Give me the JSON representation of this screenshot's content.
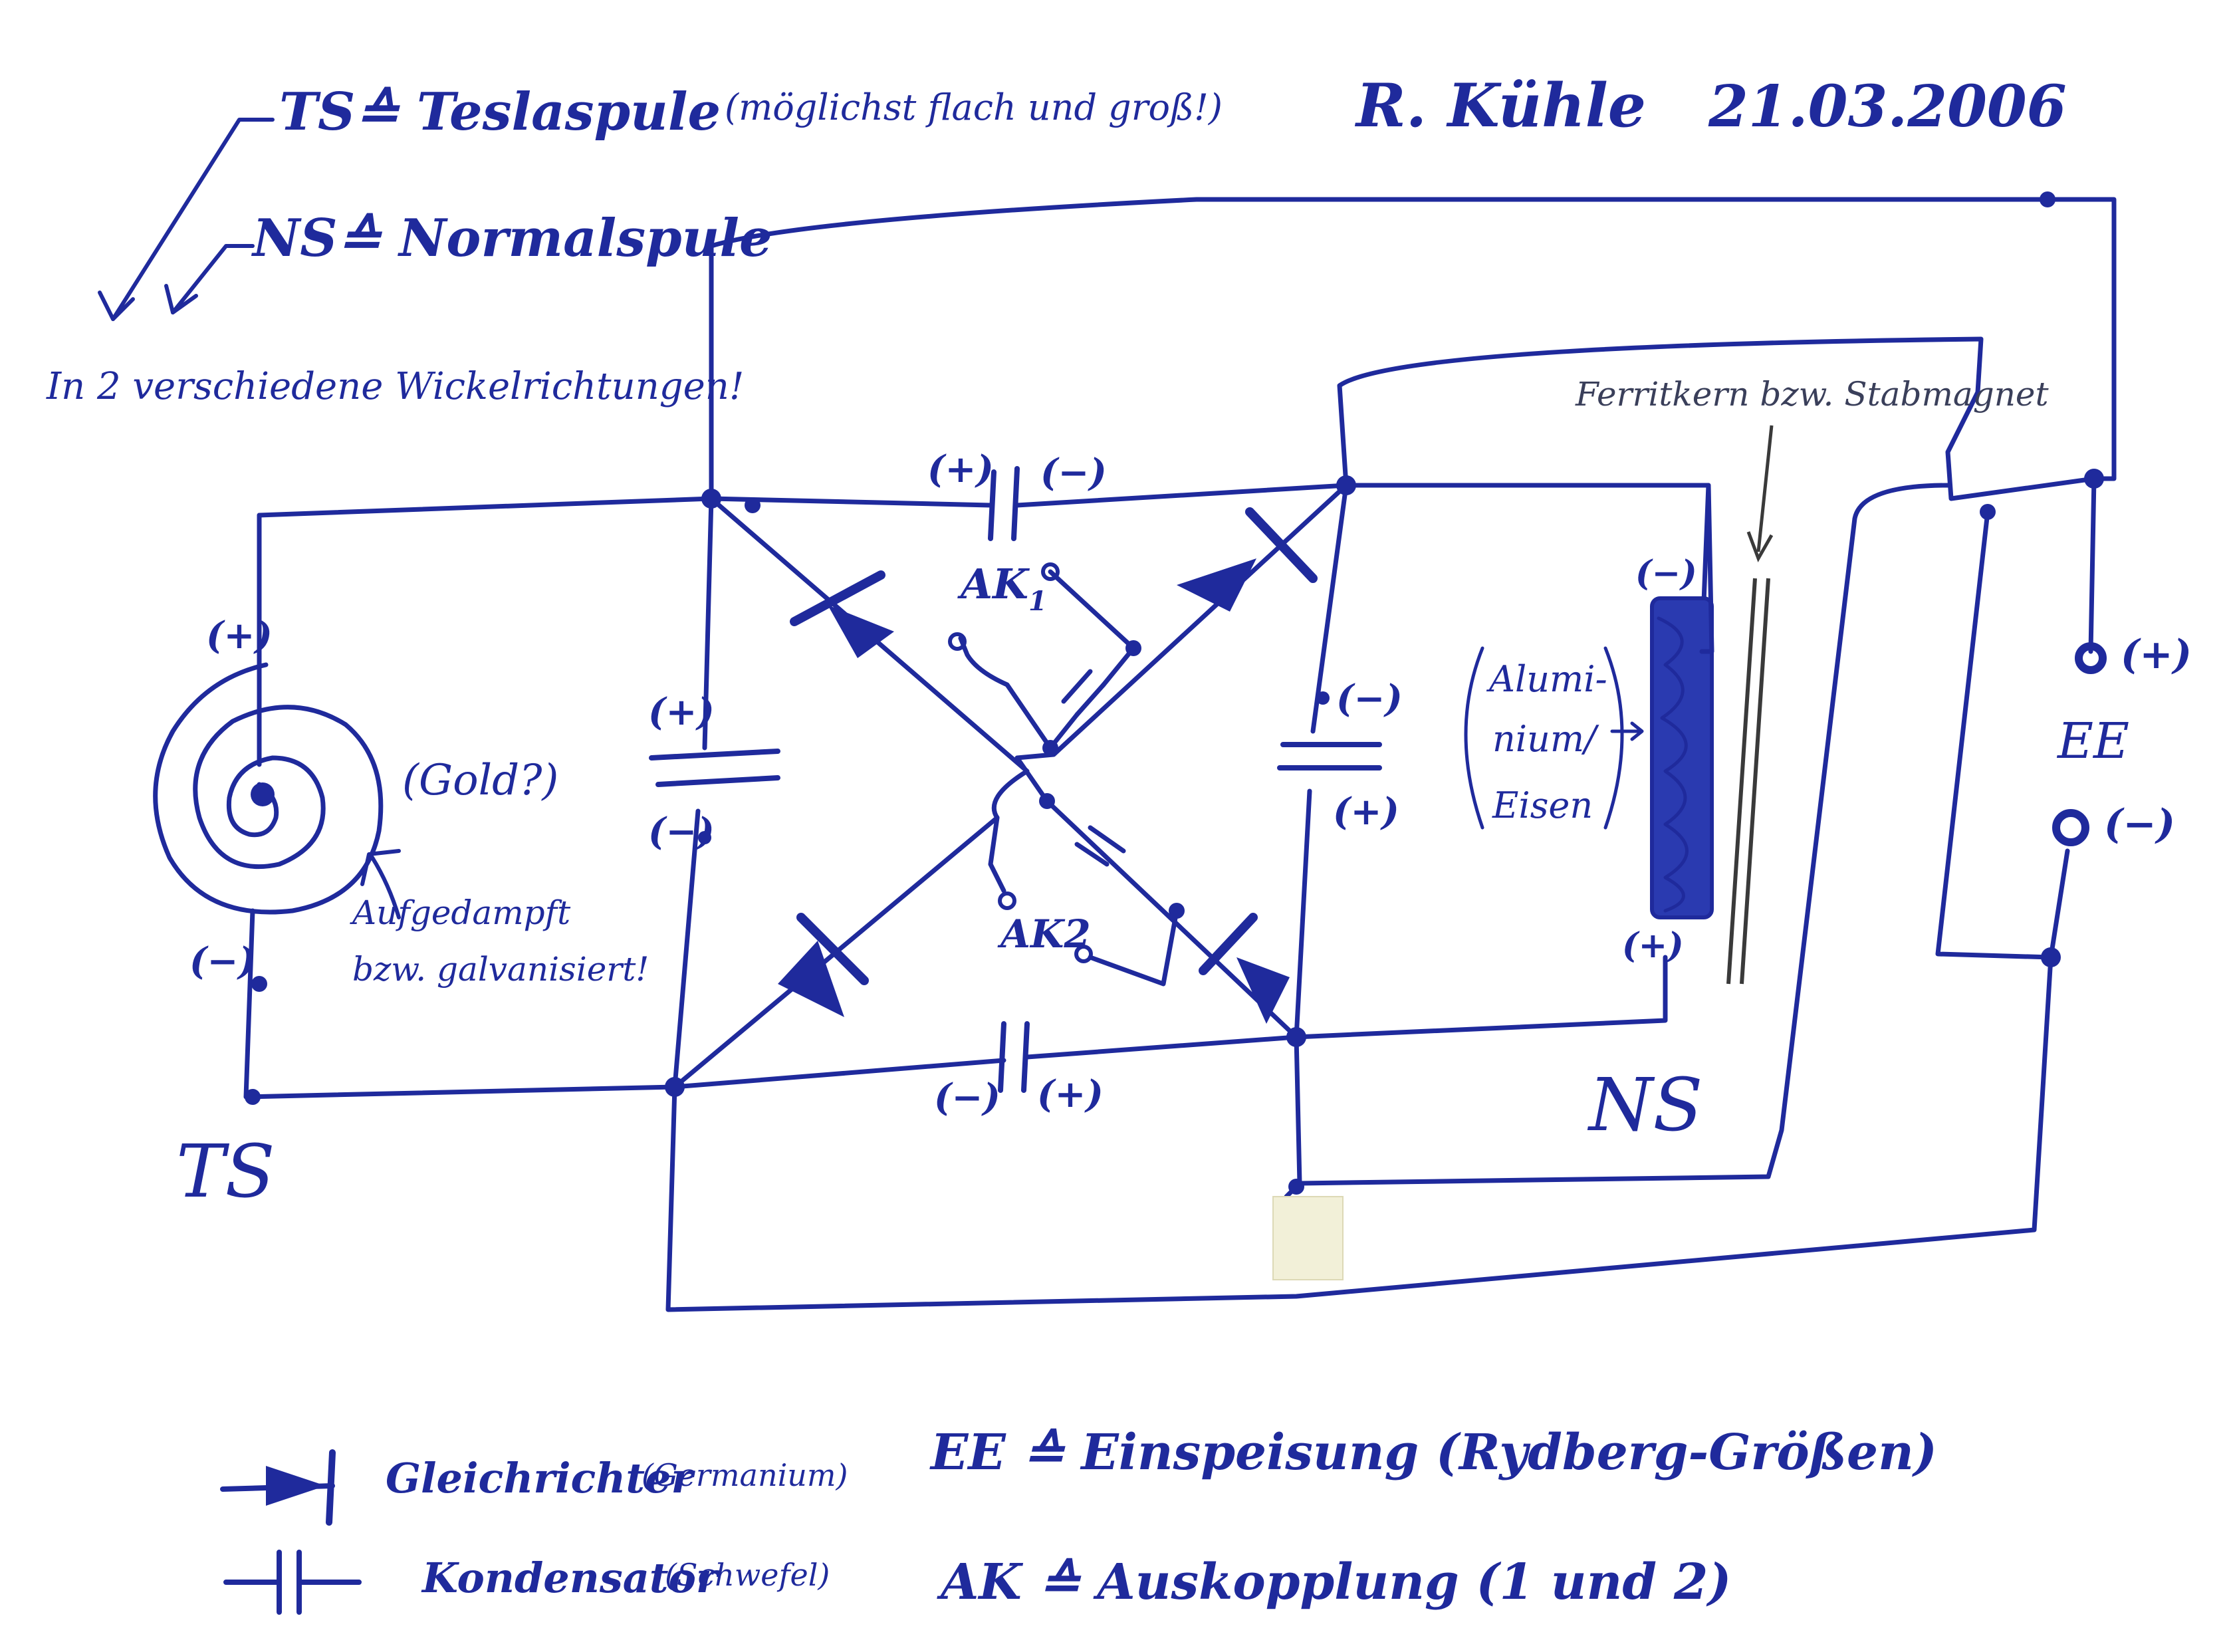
{
  "header": {
    "legend_ts": "TS≙ Teslaspule",
    "legend_ts_note": "(möglichst flach und groß!)",
    "legend_ns": "NS≙ Normalspule",
    "winding_note": "In 2 verschiedene Wickelrichtungen!",
    "author": "R. Kühle",
    "date": "21.03.2006"
  },
  "labels": {
    "plus": "(+)",
    "minus": "(−)",
    "gold": "(Gold?)",
    "gold_note_1": "Aufgedampft",
    "gold_note_2": "bzw. galvanisiert!",
    "ts": "TS",
    "ns": "NS",
    "ee": "EE",
    "ak1": "AK",
    "ak1_sub": "1",
    "ak2": "AK2",
    "core_note": "Ferritkern bzw. Stabmagnet",
    "core_mat_1": "Alumi-",
    "core_mat_2": "nium/",
    "core_mat_3": "Eisen"
  },
  "legend": {
    "diode": "Gleichrichter",
    "diode_note": "(Germanium)",
    "capacitor": "Kondensator",
    "capacitor_note": "(Schwefel)",
    "ee_def": "EE ≙ Einspeisung (Rydberg-Größen)",
    "ak_def": "AK ≙ Auskopplung (1 und 2)"
  }
}
